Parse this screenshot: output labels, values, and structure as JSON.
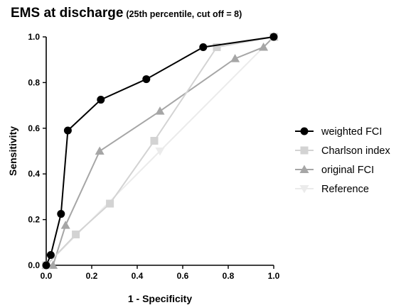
{
  "chart_data": {
    "type": "line",
    "title": "EMS at discharge",
    "subtitle": "(25th percentile, cut off = 8)",
    "xlabel": "1 - Specificity",
    "ylabel": "Sensitivity",
    "xlim": [
      0,
      1.0
    ],
    "ylim": [
      0,
      1.0
    ],
    "x_ticks": [
      "0.0",
      "0.2",
      "0.4",
      "0.6",
      "0.8",
      "1.0"
    ],
    "y_ticks": [
      "0.0",
      "0.2",
      "0.4",
      "0.6",
      "0.8",
      "1.0"
    ],
    "grid": false,
    "legend_position": "right",
    "series": [
      {
        "name": "weighted FCI",
        "color": "#000000",
        "marker": "circle",
        "x": [
          0.0,
          0.02,
          0.065,
          0.095,
          0.24,
          0.44,
          0.69,
          1.0
        ],
        "y": [
          0.0,
          0.045,
          0.225,
          0.59,
          0.725,
          0.815,
          0.955,
          1.0
        ]
      },
      {
        "name": "Charlson index",
        "color": "#d3d3d3",
        "marker": "square",
        "x": [
          0.0,
          0.13,
          0.28,
          0.475,
          0.75,
          1.0
        ],
        "y": [
          0.0,
          0.135,
          0.27,
          0.545,
          0.955,
          1.0
        ]
      },
      {
        "name": "original FCI",
        "color": "#a6a6a6",
        "marker": "triangle-up",
        "x": [
          0.0,
          0.03,
          0.085,
          0.235,
          0.5,
          0.83,
          0.955,
          1.0
        ],
        "y": [
          0.0,
          0.0,
          0.175,
          0.5,
          0.675,
          0.905,
          0.955,
          1.0
        ]
      },
      {
        "name": "Reference",
        "color": "#ebebeb",
        "marker": "triangle-down",
        "x": [
          0.0,
          0.5,
          1.0
        ],
        "y": [
          0.0,
          0.5,
          1.0
        ]
      }
    ]
  }
}
